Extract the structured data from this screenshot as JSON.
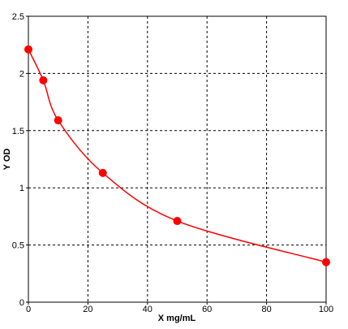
{
  "chart_data": {
    "type": "scatter",
    "x_label": "X mg/mL",
    "y_label": "Y OD",
    "x": [
      0,
      5,
      10,
      25,
      50,
      100
    ],
    "values": [
      2.21,
      1.94,
      1.59,
      1.13,
      0.71,
      0.35
    ],
    "color": "#ff0000",
    "line": true,
    "xlim": [
      0,
      100
    ],
    "xticks": [
      0,
      20,
      40,
      60,
      80,
      100
    ],
    "ylim": [
      0,
      2.5
    ],
    "yticks": [
      0,
      0.5,
      1,
      1.5,
      2,
      2.5
    ],
    "grid": true
  }
}
